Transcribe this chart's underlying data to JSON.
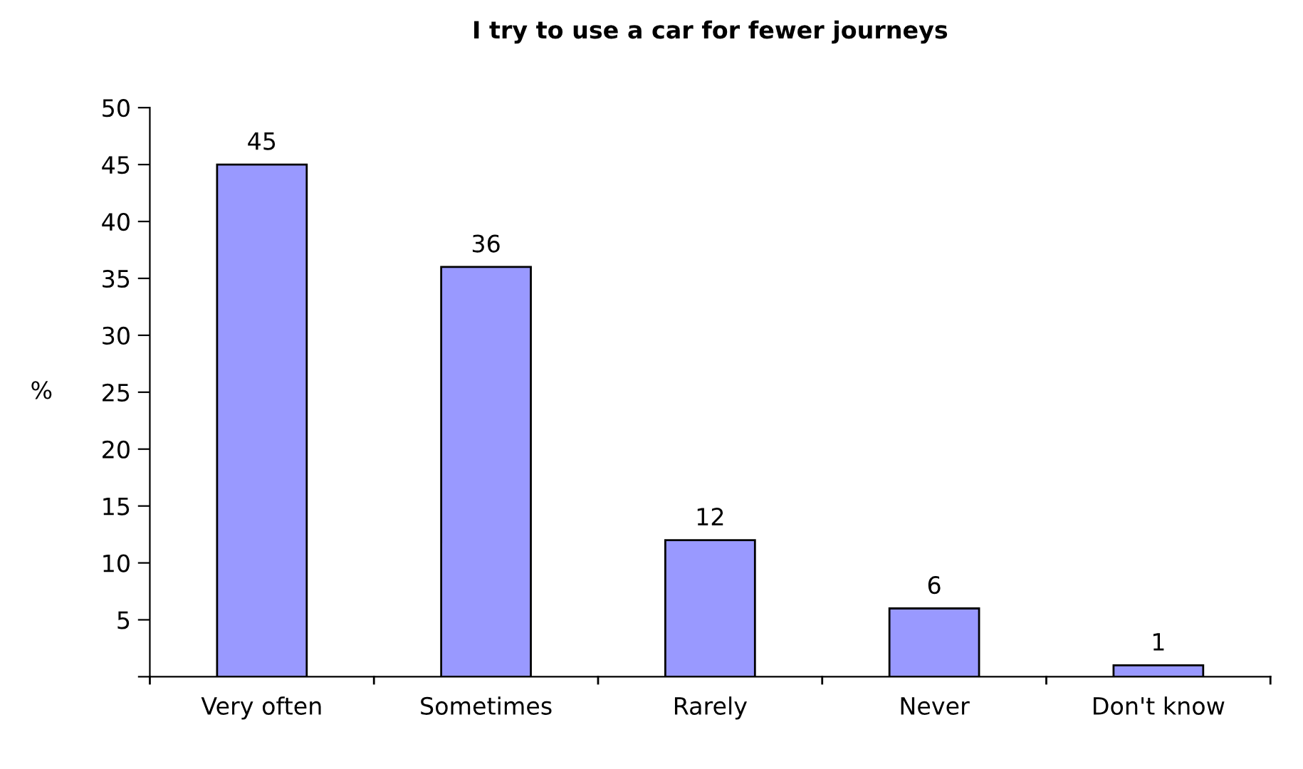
{
  "chart_data": {
    "type": "bar",
    "title": "I try to use a car for fewer journeys",
    "ylabel": "%",
    "categories": [
      "Very often",
      "Sometimes",
      "Rarely",
      "Never",
      "Don't know"
    ],
    "series": [
      {
        "color": "#9999ff",
        "values": [
          45,
          36,
          12,
          6,
          1
        ]
      }
    ],
    "ylim": [
      0,
      50
    ],
    "yticks": [
      {
        "value": 0,
        "label": null
      },
      5,
      10,
      15,
      20,
      25,
      30,
      35,
      40,
      45,
      50
    ],
    "data_labels": true
  }
}
